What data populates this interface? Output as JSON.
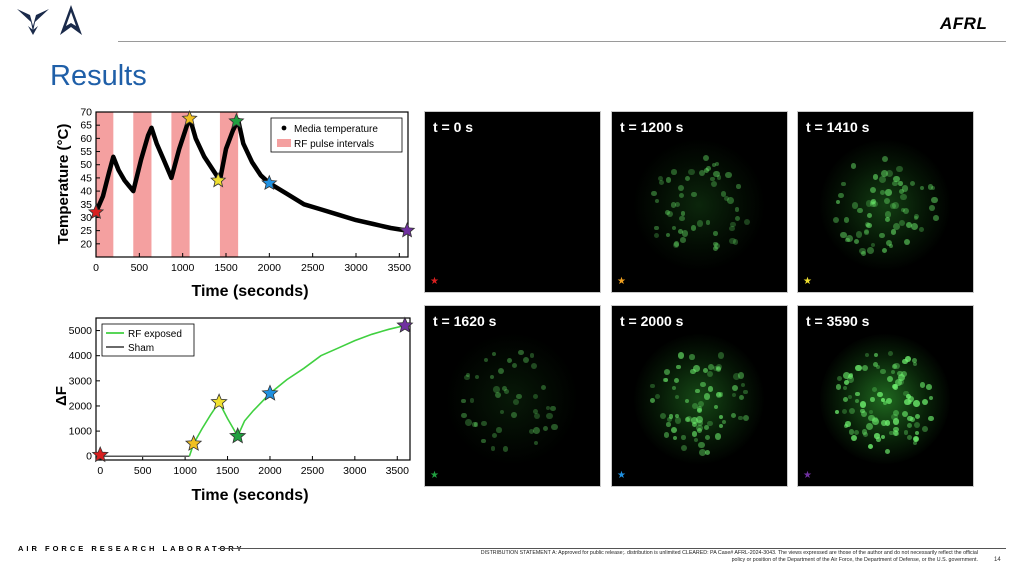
{
  "slide": {
    "title": "Results",
    "org": "AFRL",
    "lab": "AIR FORCE RESEARCH LABORATORY",
    "statement_line1": "DISTRIBUTION STATEMENT A: Approved for public release;. distribution is unlimited CLEARED: PA Case# AFRL-2024-3043. The views expressed are those of the author and do not necessarily reflect the official",
    "statement_line2": "policy or position of the Department of the Air Force, the Department of Defense, or the U.S. government.",
    "page": "14"
  },
  "icons": [
    "air-force-wings-icon",
    "space-force-delta-icon"
  ],
  "chart_data": [
    {
      "type": "scatter",
      "xlabel": "Time (seconds)",
      "ylabel": "Temperature (°C)",
      "xlim": [
        0,
        3600
      ],
      "ylim": [
        15,
        70
      ],
      "xticks": [
        0,
        500,
        1000,
        1500,
        2000,
        2500,
        3000,
        3500
      ],
      "yticks": [
        20,
        25,
        30,
        35,
        40,
        45,
        50,
        55,
        60,
        65,
        70
      ],
      "legend": {
        "placement": "top-right",
        "entries": [
          "Media temperature",
          "RF pulse intervals"
        ]
      },
      "pulse_intervals": [
        [
          0,
          200
        ],
        [
          430,
          640
        ],
        [
          870,
          1080
        ],
        [
          1430,
          1640
        ]
      ],
      "pulse_color": "#f4a0a0",
      "series": [
        {
          "name": "Media temperature",
          "color": "#000000",
          "x": [
            0,
            80,
            150,
            200,
            260,
            330,
            430,
            520,
            600,
            640,
            700,
            780,
            870,
            960,
            1030,
            1080,
            1150,
            1250,
            1350,
            1430,
            1500,
            1580,
            1640,
            1700,
            1800,
            1900,
            2000,
            2200,
            2400,
            2600,
            2800,
            3000,
            3200,
            3400,
            3590
          ],
          "y": [
            32,
            38,
            47,
            53,
            48,
            44,
            40,
            52,
            61,
            64,
            58,
            52,
            45,
            56,
            63,
            68,
            60,
            53,
            48,
            44,
            56,
            63,
            67,
            58,
            51,
            46,
            43,
            39,
            35,
            33,
            31,
            29,
            27.5,
            26,
            25
          ]
        }
      ],
      "star_markers": [
        {
          "x": 0,
          "y": 32,
          "color": "#d82020"
        },
        {
          "x": 1080,
          "y": 67.5,
          "color": "#f0c020"
        },
        {
          "x": 1410,
          "y": 44,
          "color": "#f0e030"
        },
        {
          "x": 1620,
          "y": 66.5,
          "color": "#20a040"
        },
        {
          "x": 2000,
          "y": 43,
          "color": "#2090e0"
        },
        {
          "x": 3590,
          "y": 25,
          "color": "#7030a0"
        }
      ]
    },
    {
      "type": "line",
      "xlabel": "Time (seconds)",
      "ylabel": "ΔF",
      "xlim": [
        -50,
        3650
      ],
      "ylim": [
        -150,
        5500
      ],
      "xticks": [
        0,
        500,
        1000,
        1500,
        2000,
        2500,
        3000,
        3500
      ],
      "yticks": [
        0,
        1000,
        2000,
        3000,
        4000,
        5000
      ],
      "legend": {
        "placement": "top-left",
        "entries": [
          "RF exposed",
          "Sham"
        ]
      },
      "series": [
        {
          "name": "RF exposed",
          "color": "#40d040",
          "x": [
            1050,
            1100,
            1200,
            1300,
            1400,
            1500,
            1620,
            1700,
            1800,
            2000,
            2200,
            2400,
            2600,
            2800,
            3000,
            3200,
            3400,
            3590
          ],
          "y": [
            0,
            500,
            1100,
            1650,
            2150,
            1500,
            800,
            1400,
            1800,
            2500,
            3050,
            3500,
            4000,
            4300,
            4600,
            4850,
            5050,
            5200
          ]
        },
        {
          "name": "Sham",
          "color": "#555555",
          "x": [
            0,
            500,
            1000,
            1050
          ],
          "y": [
            0,
            0,
            0,
            0
          ]
        }
      ],
      "star_markers": [
        {
          "x": 0,
          "y": 50,
          "color": "#d82020"
        },
        {
          "x": 1100,
          "y": 500,
          "color": "#f0c020"
        },
        {
          "x": 1400,
          "y": 2150,
          "color": "#f0e030"
        },
        {
          "x": 1620,
          "y": 800,
          "color": "#20a040"
        },
        {
          "x": 2000,
          "y": 2500,
          "color": "#2090e0"
        },
        {
          "x": 3590,
          "y": 5200,
          "color": "#7030a0"
        }
      ]
    }
  ],
  "images": [
    {
      "label": "t = 0 s",
      "star_color": "#d82020",
      "intensity": 0
    },
    {
      "label": "t = 1200 s",
      "star_color": "#f0a020",
      "intensity": 0.35
    },
    {
      "label": "t = 1410 s",
      "star_color": "#f0e030",
      "intensity": 0.55
    },
    {
      "label": "t = 1620 s",
      "star_color": "#20a040",
      "intensity": 0.22
    },
    {
      "label": "t = 2000 s",
      "star_color": "#2090e0",
      "intensity": 0.65
    },
    {
      "label": "t = 3590 s",
      "star_color": "#7030a0",
      "intensity": 0.95
    }
  ]
}
